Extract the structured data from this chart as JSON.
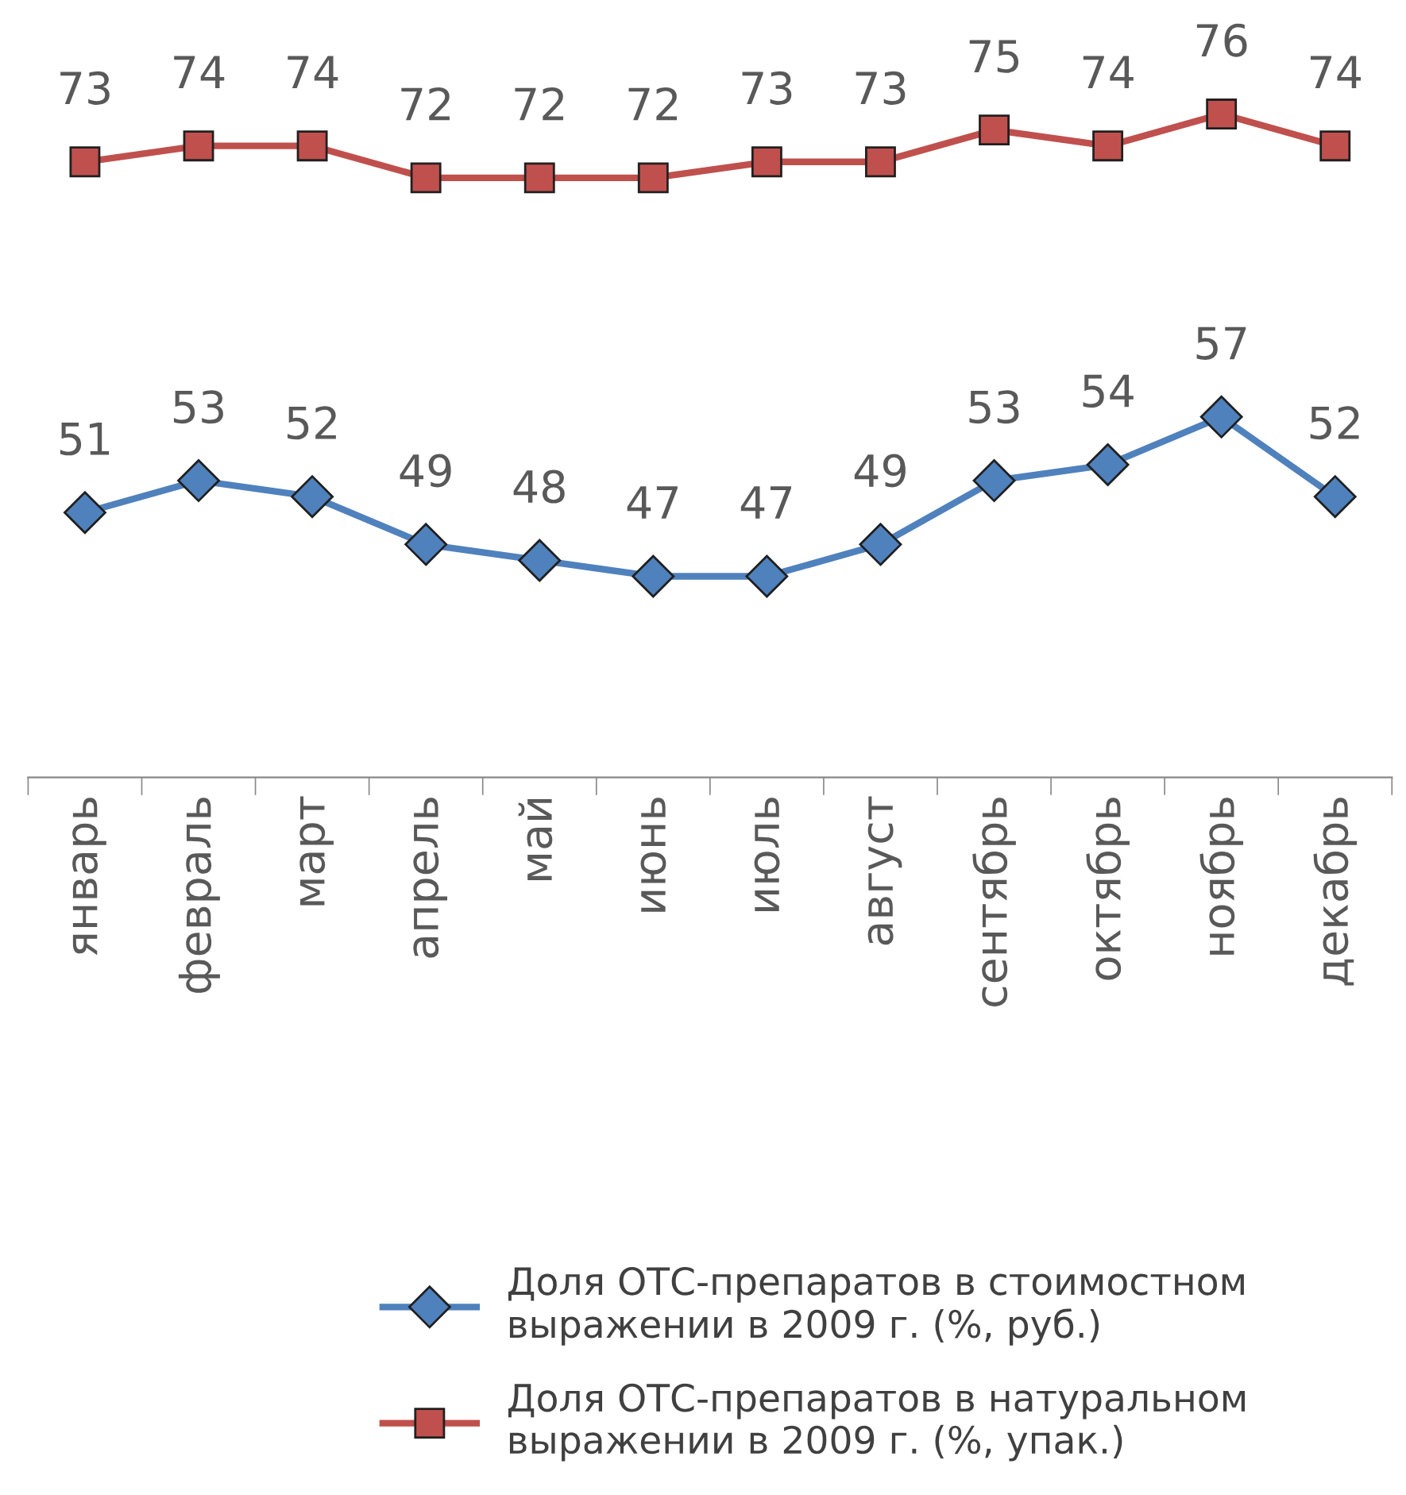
{
  "chart_data": {
    "type": "line",
    "categories": [
      "январь",
      "февраль",
      "март",
      "апрель",
      "май",
      "июнь",
      "июль",
      "август",
      "сентябрь",
      "октябрь",
      "ноябрь",
      "декабрь"
    ],
    "series": [
      {
        "name": "Доля ОТС-препаратов в стоимостном выражении в 2009 г. (%, руб.)",
        "color": "#4f81bd",
        "marker": "diamond",
        "values": [
          51,
          53,
          52,
          49,
          48,
          47,
          47,
          49,
          53,
          54,
          57,
          52
        ]
      },
      {
        "name": "Доля ОТС-препаратов в натуральном выражении в 2009 г. (%, упак.)",
        "color": "#c0504d",
        "marker": "square",
        "values": [
          73,
          74,
          74,
          72,
          72,
          72,
          73,
          73,
          75,
          74,
          76,
          74
        ]
      }
    ],
    "tick_labels": "x",
    "data_labels": true,
    "grid": false,
    "legend": "bottom",
    "line_style": "solid"
  }
}
